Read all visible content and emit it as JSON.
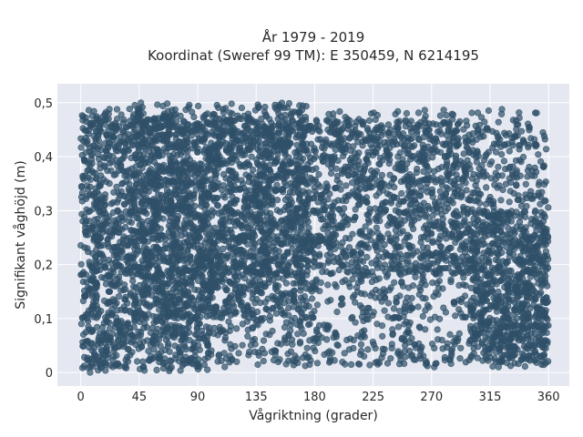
{
  "chart_data": {
    "type": "scatter",
    "title_lines": [
      "År 1979 - 2019",
      "Koordinat (Sweref 99 TM): E 350459, N 6214195"
    ],
    "xlabel": "Vågriktning (grader)",
    "ylabel": "Signifikant våghöjd (m)",
    "xlim": [
      -18,
      376
    ],
    "ylim": [
      -0.025,
      0.535
    ],
    "x_ticks": [
      0,
      45,
      90,
      135,
      180,
      225,
      270,
      315,
      360
    ],
    "x_tick_labels": [
      "0",
      "45",
      "90",
      "135",
      "180",
      "225",
      "270",
      "315",
      "360"
    ],
    "y_ticks": [
      0,
      0.1,
      0.2,
      0.3,
      0.4,
      0.5
    ],
    "y_tick_labels": [
      "0",
      "0,1",
      "0,2",
      "0,3",
      "0,4",
      "0,5"
    ],
    "grid": true,
    "marker_color": "#2f5068",
    "marker_opacity": 0.7,
    "series": [
      {
        "dense_regions": [
          {
            "x": [
              0,
              360
            ],
            "y": [
              0.01,
              0.46
            ]
          },
          {
            "x": [
              0,
              100
            ],
            "y": [
              0.0,
              0.48
            ]
          },
          {
            "x": [
              40,
              175
            ],
            "y": [
              0.1,
              0.5
            ]
          },
          {
            "x": [
              100,
              300
            ],
            "y": [
              0.18,
              0.47
            ]
          },
          {
            "x": [
              300,
              360
            ],
            "y": [
              0.02,
              0.3
            ]
          }
        ],
        "outliers": [
          {
            "x": 190,
            "y": 0.08
          },
          {
            "x": 198,
            "y": 0.05
          },
          {
            "x": 210,
            "y": 0.06
          },
          {
            "x": 218,
            "y": 0.03
          },
          {
            "x": 228,
            "y": 0.09
          },
          {
            "x": 240,
            "y": 0.07
          },
          {
            "x": 253,
            "y": 0.04
          },
          {
            "x": 265,
            "y": 0.08
          },
          {
            "x": 278,
            "y": 0.06
          },
          {
            "x": 285,
            "y": 0.03
          },
          {
            "x": 300,
            "y": 0.12
          },
          {
            "x": 310,
            "y": 0.15
          },
          {
            "x": 150,
            "y": 0.04
          },
          {
            "x": 160,
            "y": 0.07
          },
          {
            "x": 170,
            "y": 0.11
          },
          {
            "x": 120,
            "y": 0.02
          },
          {
            "x": 135,
            "y": 0.09
          },
          {
            "x": 142,
            "y": 0.13
          },
          {
            "x": 250,
            "y": 0.13
          },
          {
            "x": 230,
            "y": 0.15
          }
        ]
      }
    ]
  }
}
